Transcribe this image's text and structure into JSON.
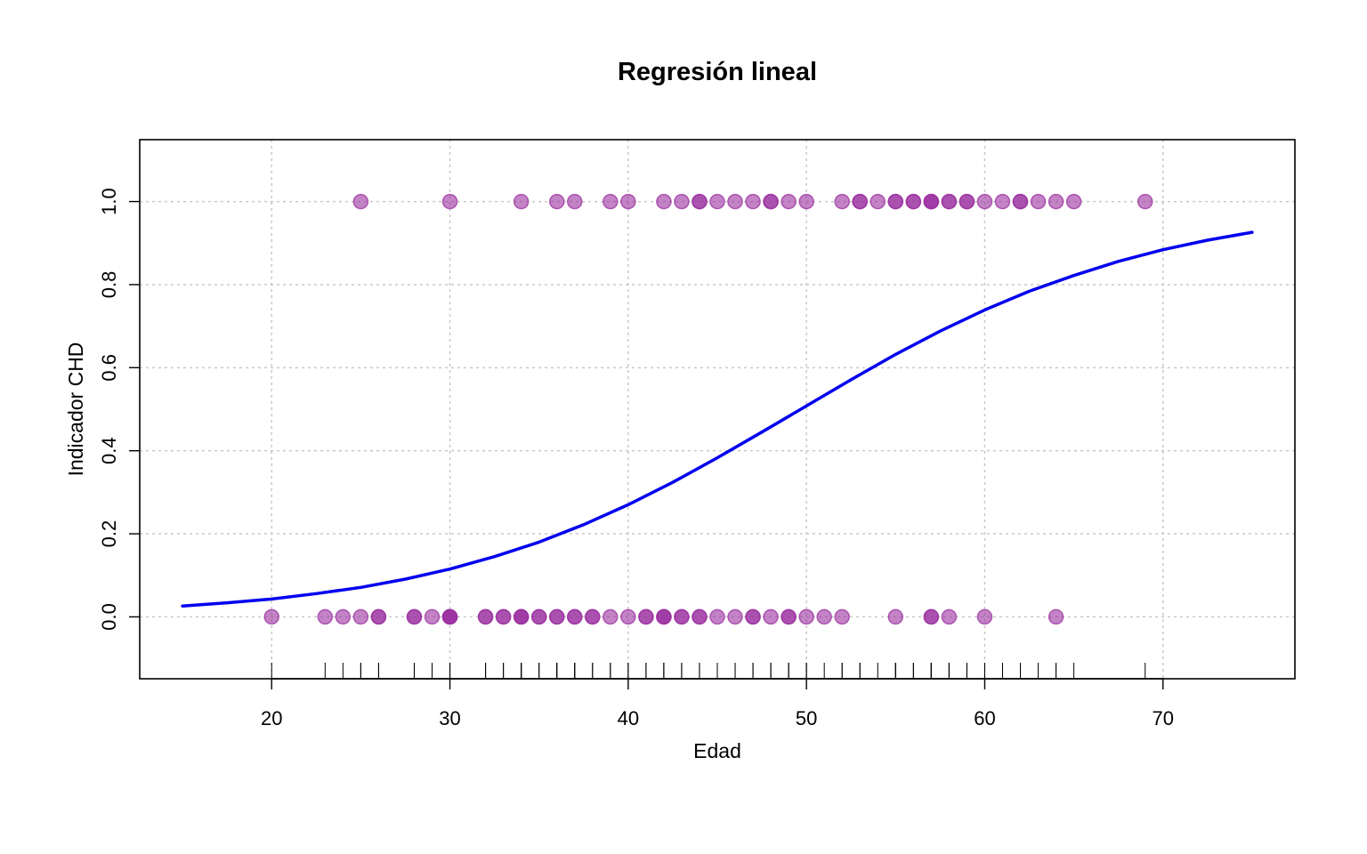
{
  "chart_data": {
    "type": "scatter",
    "title": "Regresión lineal",
    "xlabel": "Edad",
    "ylabel": "Indicador CHD",
    "xlim": [
      12.6,
      77.4
    ],
    "ylim": [
      -0.149,
      1.149
    ],
    "xticks": [
      20,
      30,
      40,
      50,
      60,
      70
    ],
    "yticks": [
      0.0,
      0.2,
      0.4,
      0.6,
      0.8,
      1.0
    ],
    "xtick_labels": [
      "20",
      "30",
      "40",
      "50",
      "60",
      "70"
    ],
    "ytick_labels": [
      "0.0",
      "0.2",
      "0.4",
      "0.6",
      "0.8",
      "1.0"
    ],
    "grid": true,
    "point_color": "#9b30a0",
    "curve_color": "#0000ee",
    "series": [
      {
        "kind": "points",
        "y": 1,
        "x": [
          25,
          30,
          34,
          36,
          37,
          39,
          40,
          42,
          43,
          44,
          44,
          45,
          46,
          47,
          48,
          48,
          49,
          50,
          52,
          53,
          53,
          54,
          55,
          55,
          56,
          56,
          57,
          57,
          57,
          58,
          58,
          59,
          59,
          60,
          61,
          62,
          62,
          63,
          64,
          65,
          69
        ]
      },
      {
        "kind": "points",
        "y": 0,
        "x": [
          20,
          23,
          24,
          25,
          26,
          26,
          28,
          28,
          29,
          30,
          30,
          30,
          30,
          32,
          32,
          33,
          33,
          34,
          34,
          34,
          35,
          35,
          36,
          36,
          37,
          37,
          38,
          38,
          39,
          40,
          41,
          41,
          42,
          42,
          42,
          43,
          43,
          44,
          44,
          45,
          46,
          47,
          47,
          48,
          49,
          49,
          50,
          51,
          52,
          55,
          57,
          57,
          58,
          60,
          64
        ]
      },
      {
        "kind": "curve",
        "x": [
          15,
          17.5,
          20,
          22.5,
          25,
          27.5,
          30,
          32.5,
          35,
          37.5,
          40,
          42.5,
          45,
          47.5,
          50,
          52.5,
          55,
          57.5,
          60,
          62.5,
          65,
          67.5,
          70,
          72.5,
          75
        ],
        "y": [
          0.026,
          0.034,
          0.043,
          0.056,
          0.071,
          0.091,
          0.115,
          0.145,
          0.18,
          0.222,
          0.27,
          0.324,
          0.383,
          0.445,
          0.508,
          0.571,
          0.632,
          0.688,
          0.739,
          0.784,
          0.822,
          0.856,
          0.884,
          0.907,
          0.926
        ]
      }
    ],
    "rug_x": [
      20,
      23,
      24,
      25,
      25,
      26,
      26,
      28,
      28,
      29,
      30,
      30,
      30,
      30,
      30,
      32,
      32,
      33,
      33,
      34,
      34,
      34,
      34,
      35,
      35,
      36,
      36,
      36,
      37,
      37,
      37,
      38,
      38,
      39,
      39,
      40,
      40,
      41,
      41,
      42,
      42,
      42,
      42,
      43,
      43,
      43,
      44,
      44,
      44,
      44,
      45,
      45,
      46,
      46,
      47,
      47,
      47,
      48,
      48,
      48,
      49,
      49,
      49,
      50,
      50,
      51,
      52,
      52,
      53,
      53,
      54,
      55,
      55,
      55,
      56,
      56,
      57,
      57,
      57,
      57,
      57,
      58,
      58,
      58,
      59,
      59,
      60,
      60,
      61,
      62,
      62,
      63,
      64,
      64,
      65,
      69
    ]
  }
}
